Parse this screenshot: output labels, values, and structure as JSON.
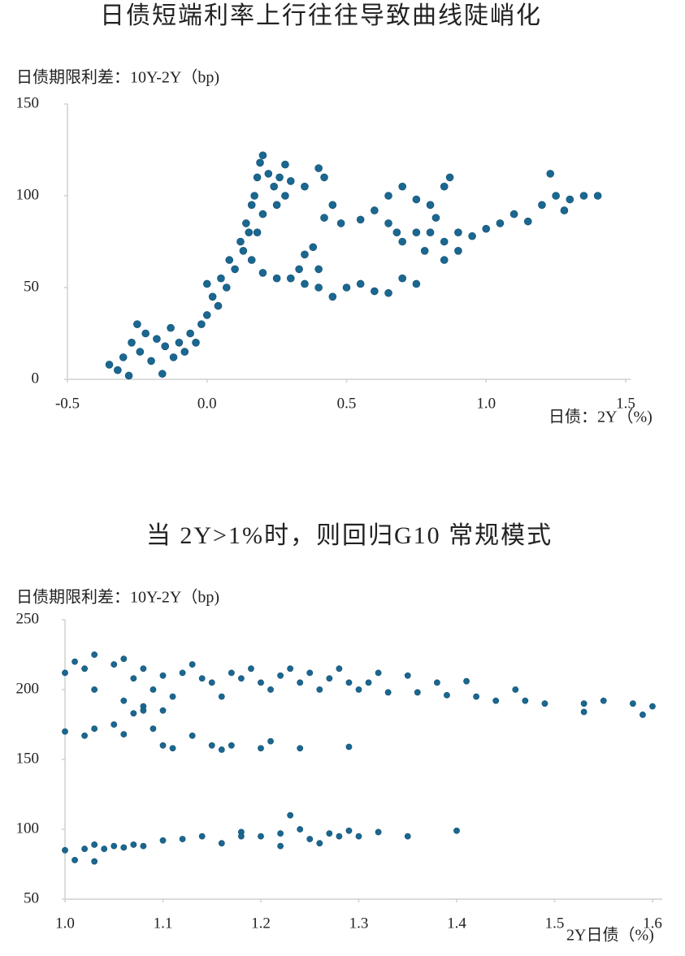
{
  "chart_data": [
    {
      "type": "scatter",
      "title": "日债短端利率上行往往导致曲线陡峭化",
      "y_label": "日债期限利差：10Y-2Y（bp)",
      "x_label": "日债：2Y（%)",
      "xlim": [
        -0.5,
        1.5
      ],
      "ylim": [
        0,
        150
      ],
      "xticks": [
        -0.5,
        {
          "value": 0,
          "label": "0.0"
        },
        0.5,
        {
          "value": 1,
          "label": "1.0"
        },
        1.5
      ],
      "yticks": [
        0,
        50,
        100,
        150
      ],
      "series": [
        {
          "color": "#1a6791",
          "x": [
            -0.35,
            -0.32,
            -0.3,
            -0.28,
            -0.27,
            -0.25,
            -0.24,
            -0.22,
            -0.2,
            -0.18,
            -0.16,
            -0.15,
            -0.13,
            -0.12,
            -0.1,
            -0.08,
            -0.06,
            -0.04,
            -0.02,
            0.0,
            0.02,
            0.0,
            0.04,
            0.05,
            0.07,
            0.08,
            0.1,
            0.12,
            0.13,
            0.14,
            0.15,
            0.16,
            0.17,
            0.18,
            0.19,
            0.2,
            0.22,
            0.24,
            0.26,
            0.28,
            0.3,
            0.28,
            0.25,
            0.2,
            0.18,
            0.16,
            0.2,
            0.25,
            0.3,
            0.35,
            0.33,
            0.35,
            0.38,
            0.4,
            0.4,
            0.45,
            0.5,
            0.55,
            0.6,
            0.65,
            0.7,
            0.75,
            0.35,
            0.4,
            0.42,
            0.45,
            0.42,
            0.48,
            0.55,
            0.6,
            0.65,
            0.68,
            0.7,
            0.65,
            0.7,
            0.75,
            0.8,
            0.85,
            0.87,
            0.82,
            0.8,
            0.85,
            0.9,
            0.95,
            1.0,
            1.05,
            1.1,
            1.15,
            1.2,
            1.25,
            1.28,
            1.3,
            1.35,
            1.4,
            1.23,
            0.78,
            0.85,
            0.9,
            0.75
          ],
          "values": [
            8,
            5,
            12,
            2,
            20,
            30,
            15,
            25,
            10,
            22,
            3,
            18,
            28,
            12,
            20,
            15,
            25,
            20,
            30,
            35,
            45,
            52,
            40,
            55,
            50,
            65,
            60,
            75,
            70,
            85,
            80,
            95,
            100,
            110,
            118,
            122,
            112,
            105,
            110,
            117,
            108,
            100,
            95,
            90,
            80,
            65,
            58,
            55,
            55,
            52,
            60,
            68,
            72,
            60,
            50,
            45,
            50,
            52,
            48,
            47,
            55,
            52,
            105,
            115,
            110,
            95,
            88,
            85,
            87,
            92,
            85,
            80,
            75,
            100,
            105,
            98,
            95,
            105,
            110,
            88,
            80,
            75,
            70,
            78,
            82,
            85,
            90,
            86,
            95,
            100,
            92,
            98,
            100,
            100,
            112,
            70,
            65,
            80,
            80
          ]
        }
      ]
    },
    {
      "type": "scatter",
      "title": "当 2Y>1%时，则回归G10 常规模式",
      "y_label": "日债期限利差：10Y-2Y（bp)",
      "x_label": "2Y日债（%)",
      "xlim": [
        1.0,
        1.6
      ],
      "ylim": [
        50,
        250
      ],
      "xticks": [
        {
          "value": 1,
          "label": "1.0"
        },
        1.1,
        1.2,
        1.3,
        1.4,
        1.5,
        1.6
      ],
      "yticks": [
        50,
        100,
        150,
        200,
        250
      ],
      "series": [
        {
          "color": "#1a6791",
          "x": [
            1.0,
            1.01,
            1.02,
            1.03,
            1.03,
            1.05,
            1.06,
            1.06,
            1.07,
            1.08,
            1.08,
            1.09,
            1.1,
            1.11,
            1.12,
            1.13,
            1.14,
            1.15,
            1.16,
            1.17,
            1.18,
            1.19,
            1.2,
            1.21,
            1.22,
            1.23,
            1.24,
            1.25,
            1.26,
            1.27,
            1.28,
            1.29,
            1.3,
            1.31,
            1.32,
            1.33,
            1.35,
            1.36,
            1.38,
            1.39,
            1.41,
            1.42,
            1.44,
            1.46,
            1.47,
            1.49,
            1.53,
            1.53,
            1.55,
            1.58,
            1.59,
            1.6,
            1.0,
            1.02,
            1.03,
            1.05,
            1.06,
            1.07,
            1.09,
            1.1,
            1.11,
            1.13,
            1.15,
            1.16,
            1.17,
            1.2,
            1.21,
            1.24,
            1.29,
            1.08,
            1.1,
            1.0,
            1.01,
            1.02,
            1.03,
            1.04,
            1.05,
            1.06,
            1.07,
            1.08,
            1.1,
            1.12,
            1.14,
            1.16,
            1.18,
            1.2,
            1.22,
            1.23,
            1.24,
            1.25,
            1.26,
            1.27,
            1.28,
            1.29,
            1.3,
            1.32,
            1.35,
            1.4,
            1.03,
            1.22,
            1.18
          ],
          "values": [
            212,
            220,
            215,
            225,
            200,
            218,
            222,
            192,
            208,
            215,
            188,
            200,
            210,
            195,
            212,
            218,
            208,
            205,
            195,
            212,
            208,
            215,
            205,
            200,
            210,
            215,
            205,
            212,
            200,
            208,
            215,
            205,
            200,
            205,
            212,
            198,
            210,
            198,
            205,
            196,
            206,
            195,
            192,
            200,
            192,
            190,
            190,
            184,
            192,
            190,
            182,
            188,
            170,
            167,
            172,
            175,
            168,
            183,
            172,
            160,
            158,
            167,
            160,
            157,
            160,
            158,
            163,
            158,
            159,
            185,
            185,
            85,
            78,
            86,
            89,
            86,
            88,
            87,
            89,
            88,
            92,
            93,
            95,
            90,
            98,
            95,
            97,
            110,
            100,
            93,
            90,
            97,
            95,
            99,
            95,
            98,
            95,
            99,
            77,
            88,
            95
          ]
        }
      ]
    }
  ]
}
